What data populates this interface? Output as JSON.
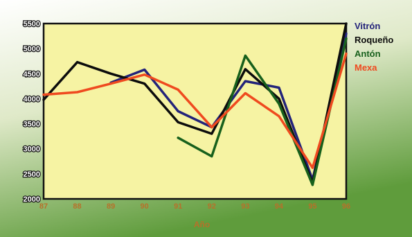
{
  "chart_data": {
    "type": "line",
    "title": "",
    "xlabel": "Año",
    "ylabel": "",
    "x": [
      "87",
      "88",
      "89",
      "90",
      "91",
      "92",
      "93",
      "94",
      "95",
      "96"
    ],
    "ylim": [
      2000,
      5500
    ],
    "yticks": [
      2000,
      2500,
      3000,
      3500,
      4000,
      4500,
      5000,
      5500
    ],
    "grid": false,
    "legend_position": "right",
    "background_color": "#f6f3a3",
    "series": [
      {
        "name": "Vitrón",
        "color": "#23237a",
        "values": [
          null,
          null,
          4320,
          4580,
          3750,
          3430,
          4350,
          4220,
          2380,
          5300
        ]
      },
      {
        "name": "Roqueño",
        "color": "#0c0c0c",
        "values": [
          3980,
          4730,
          4500,
          4300,
          3530,
          3300,
          4590,
          4000,
          2320,
          5500
        ]
      },
      {
        "name": "Antón",
        "color": "#17601c",
        "values": [
          null,
          null,
          null,
          null,
          3220,
          2850,
          4860,
          3900,
          2280,
          5200
        ]
      },
      {
        "name": "Mexa",
        "color": "#ef4a1f",
        "values": [
          4080,
          4130,
          4300,
          4480,
          4180,
          3430,
          4110,
          3650,
          2620,
          4900
        ]
      }
    ]
  }
}
